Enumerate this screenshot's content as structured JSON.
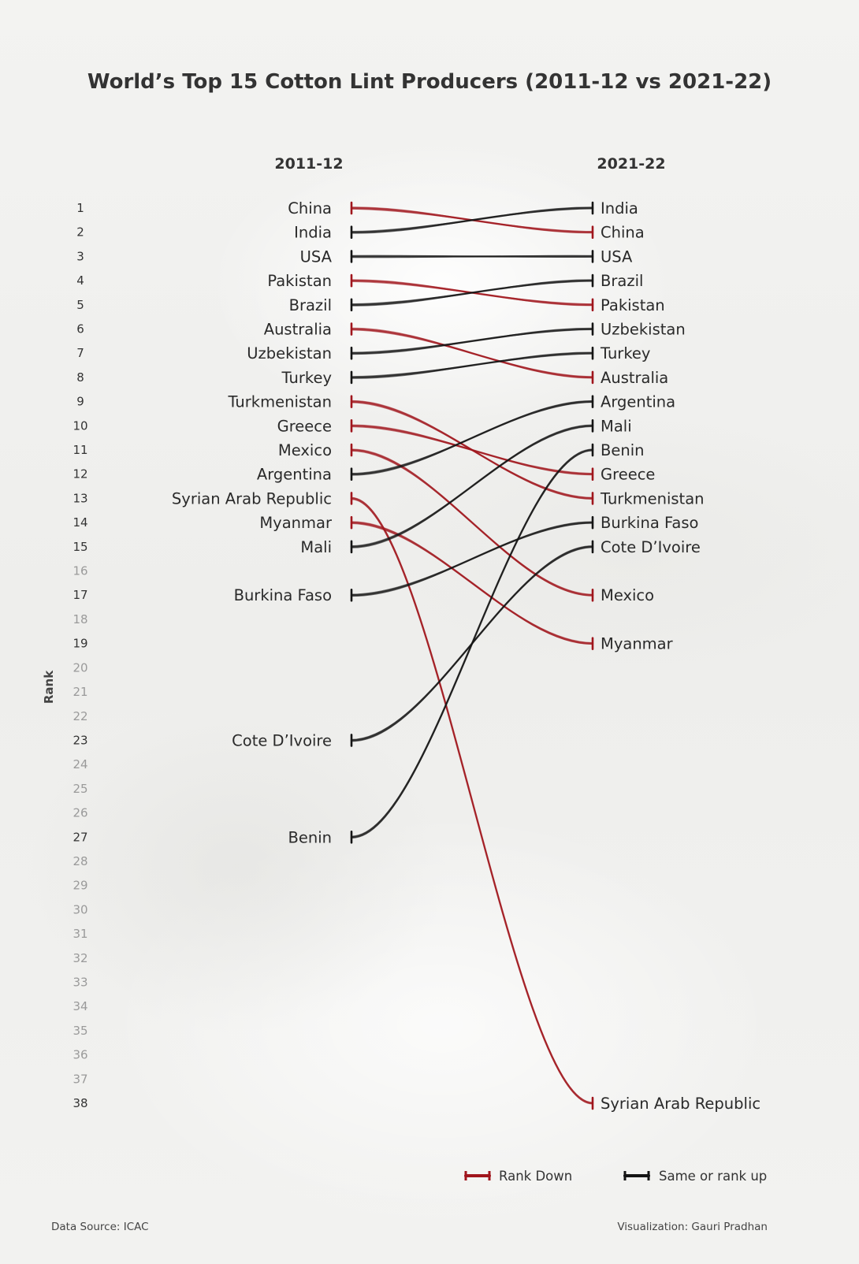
{
  "chart_data": {
    "type": "line",
    "title": "World’s Top 15 Cotton Lint Producers (2011-12 vs 2021-22)",
    "ylabel": "Rank",
    "columns": [
      "2011-12",
      "2021-22"
    ],
    "rank_ticks": [
      1,
      2,
      3,
      4,
      5,
      6,
      7,
      8,
      9,
      10,
      11,
      12,
      13,
      14,
      15,
      16,
      17,
      18,
      19,
      20,
      21,
      22,
      23,
      24,
      25,
      26,
      27,
      28,
      29,
      30,
      31,
      32,
      33,
      34,
      35,
      36,
      37,
      38
    ],
    "ylim": [
      1,
      38
    ],
    "series": [
      {
        "name": "China",
        "values": [
          1,
          2
        ]
      },
      {
        "name": "India",
        "values": [
          2,
          1
        ]
      },
      {
        "name": "USA",
        "values": [
          3,
          3
        ]
      },
      {
        "name": "Pakistan",
        "values": [
          4,
          5
        ]
      },
      {
        "name": "Brazil",
        "values": [
          5,
          4
        ]
      },
      {
        "name": "Australia",
        "values": [
          6,
          8
        ]
      },
      {
        "name": "Uzbekistan",
        "values": [
          7,
          6
        ]
      },
      {
        "name": "Turkey",
        "values": [
          8,
          7
        ]
      },
      {
        "name": "Turkmenistan",
        "values": [
          9,
          13
        ]
      },
      {
        "name": "Greece",
        "values": [
          10,
          12
        ]
      },
      {
        "name": "Mexico",
        "values": [
          11,
          17
        ]
      },
      {
        "name": "Argentina",
        "values": [
          12,
          9
        ]
      },
      {
        "name": "Syrian Arab Republic",
        "values": [
          13,
          38
        ]
      },
      {
        "name": "Myanmar",
        "values": [
          14,
          19
        ]
      },
      {
        "name": "Mali",
        "values": [
          15,
          10
        ]
      },
      {
        "name": "Burkina Faso",
        "values": [
          17,
          14
        ]
      },
      {
        "name": "Cote D’Ivoire",
        "values": [
          23,
          15
        ]
      },
      {
        "name": "Benin",
        "values": [
          27,
          11
        ]
      }
    ],
    "legend": [
      {
        "label": "Rank Down",
        "color": "#a0151c"
      },
      {
        "label": "Same or rank up",
        "color": "#141414"
      }
    ],
    "legend_position": "bottom-right",
    "grid": false
  },
  "footer": {
    "source": "Data Source: ICAC",
    "credit": "Visualization: Gauri Pradhan"
  },
  "colors": {
    "rank_down": "#a0151c",
    "rank_up": "#141414",
    "tick_bold": "#333333",
    "tick_faint": "#9a9a9a",
    "background": "#f1f1ef"
  }
}
